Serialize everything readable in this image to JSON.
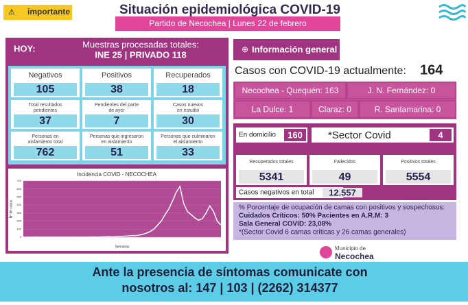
{
  "header": {
    "badge": "importante",
    "title": "Situación epidemiológica COVID-19",
    "subtitle": "Partido de Necochea | Lunes 22 de febrero"
  },
  "hoy": {
    "label": "HOY:",
    "samples_title": "Muestras procesadas totales:",
    "samples": "INE 25 | PRIVADO 118",
    "cells": [
      [
        "Negativos",
        "105"
      ],
      [
        "Positivos",
        "38"
      ],
      [
        "Recuperados",
        "18"
      ],
      [
        "Total resultados pendientes",
        "37"
      ],
      [
        "Pendientes del parte de ayer",
        "7"
      ],
      [
        "Casos nuevos en estudio",
        "30"
      ],
      [
        "Personas en aislamiento total",
        "762"
      ],
      [
        "Personas que ingresaron en aislamiento",
        "51"
      ],
      [
        "Personas que culminaron el aislamiento",
        "33"
      ]
    ]
  },
  "chart_data": {
    "type": "line",
    "title": "Incidencia COVID - NECOCHEA",
    "x_label": "Semanas",
    "y_label": "Nº de casos",
    "x": [
      1,
      2,
      3,
      4,
      5,
      6,
      7,
      8,
      9,
      10,
      11,
      12,
      13,
      14,
      15,
      16,
      17,
      18,
      19,
      20,
      21,
      22,
      23,
      24,
      25,
      26,
      27,
      28,
      29,
      30,
      31,
      32,
      33,
      34,
      35,
      36,
      37,
      38,
      39,
      40,
      41,
      42,
      43,
      44,
      45,
      46,
      47,
      48,
      49,
      50,
      51,
      52,
      53,
      54
    ],
    "series": [
      {
        "name": "Casos",
        "color": "#ffffff",
        "values": [
          0,
          0,
          1,
          2,
          1,
          0,
          0,
          1,
          0,
          0,
          1,
          0,
          0,
          1,
          2,
          1,
          0,
          1,
          2,
          3,
          2,
          4,
          5,
          6,
          4,
          8,
          10,
          12,
          15,
          20,
          18,
          25,
          35,
          50,
          70,
          100,
          150,
          200,
          280,
          350,
          450,
          560,
          630,
          420,
          320,
          280,
          240,
          210,
          230,
          300,
          390,
          320,
          200,
          150
        ]
      }
    ],
    "xlim": [
      1,
      54
    ],
    "ylim": [
      0,
      700
    ],
    "yticks": [
      0,
      100,
      200,
      300,
      400,
      500,
      600,
      700
    ]
  },
  "info": {
    "header": "Información general",
    "current_label": "Casos con COVID-19 actualmente:",
    "current": "164",
    "localities": [
      "Necochea - Quequén: 163",
      "J. N. Fernández: 0",
      "La Dulce: 1",
      "Claraz: 0",
      "R. Santamarina: 0"
    ],
    "domicilio_label": "En domicilio",
    "domicilio": "160",
    "sector_label": "*Sector Covid",
    "sector": "4",
    "totals": [
      [
        "Recuperados totales",
        "5341"
      ],
      [
        "Fallecidos",
        "49"
      ],
      [
        "Positivos totales",
        "5554"
      ]
    ],
    "negatives_label": "Casos negativos en total",
    "negatives": "12.557",
    "beds": [
      "% Porcentaje de ocupación de camas con positivos y sospechosos:",
      "Cuidados Críticos: 50%   Pacientes en A.R.M: 3",
      "Sala General COVID: 23,08%",
      "*(Sector Covid 6 camas críticas y 26 camas generales)"
    ],
    "logo_small": "Municipio de",
    "logo": "Necochea"
  },
  "footer": [
    "Ante la presencia de síntomas comunicate con",
    "nosotros al: 147 | 103 | (2262) 314377"
  ]
}
